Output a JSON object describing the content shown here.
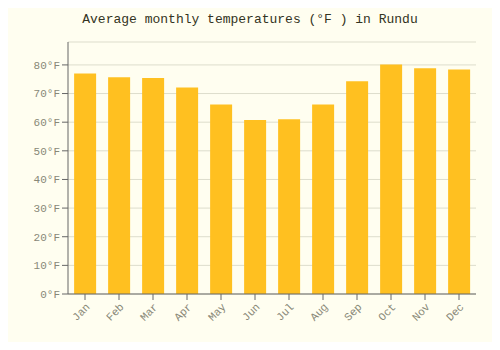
{
  "chart_data": {
    "type": "bar",
    "title": "Average monthly temperatures (°F ) in Rundu",
    "categories": [
      "Jan",
      "Feb",
      "Mar",
      "Apr",
      "May",
      "Jun",
      "Jul",
      "Aug",
      "Sep",
      "Oct",
      "Nov",
      "Dec"
    ],
    "values": [
      77.0,
      75.7,
      75.4,
      72.1,
      66.2,
      60.8,
      61.0,
      66.2,
      74.3,
      80.1,
      78.8,
      78.4
    ],
    "color": "#FFC020",
    "ylim": [
      0,
      88
    ],
    "yticks": [
      {
        "value": 0,
        "label": "0°F"
      },
      {
        "value": 10,
        "label": "10°F"
      },
      {
        "value": 20,
        "label": "20°F"
      },
      {
        "value": 30,
        "label": "30°F"
      },
      {
        "value": 40,
        "label": "40°F"
      },
      {
        "value": 50,
        "label": "50°F"
      },
      {
        "value": 60,
        "label": "60°F"
      },
      {
        "value": 70,
        "label": "70°F"
      },
      {
        "value": 80,
        "label": "80°F"
      }
    ],
    "grid": true
  }
}
